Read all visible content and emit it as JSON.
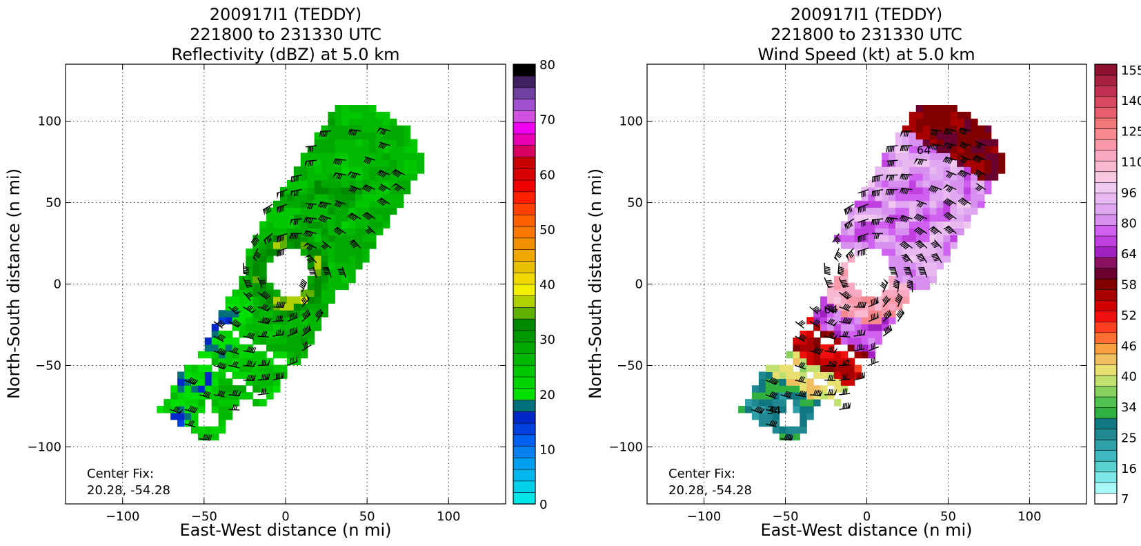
{
  "chart_data": [
    {
      "type": "heatmap",
      "title": [
        "200917I1 (TEDDY)",
        "221800 to 231330 UTC",
        "Reflectivity (dBZ) at 5.0 km"
      ],
      "xlabel": "East-West distance (n mi)",
      "ylabel": "North-South distance (n mi)",
      "xlim": [
        -135,
        135
      ],
      "ylim": [
        -135,
        135
      ],
      "xticks": [
        -100,
        -50,
        0,
        50,
        100
      ],
      "yticks": [
        -100,
        -50,
        0,
        50,
        100
      ],
      "grid": true,
      "annotation": [
        "Center Fix:",
        "20.28, -54.28"
      ],
      "colorbar": {
        "label": "dBZ",
        "range": [
          0,
          80
        ],
        "ticks": [
          0,
          10,
          20,
          30,
          40,
          50,
          60,
          70,
          80
        ],
        "colors": [
          "#00e6e6",
          "#00d0e8",
          "#00b8ee",
          "#00a0f0",
          "#0880f0",
          "#0060f0",
          "#0040e0",
          "#0028c8",
          "#00707a",
          "#00e000",
          "#00d400",
          "#00c800",
          "#00b800",
          "#00a800",
          "#009800",
          "#008800",
          "#60b000",
          "#b0d000",
          "#f0f000",
          "#f0d800",
          "#e8c000",
          "#f0a800",
          "#f09000",
          "#f87800",
          "#ff6000",
          "#ff4000",
          "#ff2000",
          "#f00000",
          "#d80000",
          "#c80000",
          "#d80060",
          "#e800b0",
          "#f000f0",
          "#d050e0",
          "#a050d0",
          "#7040a0",
          "#402060",
          "#000000"
        ]
      },
      "features": {
        "band_axis_deg": 58,
        "eye_center": [
          0,
          5
        ],
        "eye_radius": 14,
        "dominant_range_dBZ": [
          20,
          30
        ],
        "max_near_eyewall_dBZ": 40
      }
    },
    {
      "type": "heatmap",
      "title": [
        "200917I1 (TEDDY)",
        "221800 to 231330 UTC",
        "Wind Speed (kt) at 5.0 km"
      ],
      "xlabel": "East-West distance (n mi)",
      "ylabel": "North-South distance (n mi)",
      "xlim": [
        -135,
        135
      ],
      "ylim": [
        -135,
        135
      ],
      "xticks": [
        -100,
        -50,
        0,
        50,
        100
      ],
      "yticks": [
        -100,
        -50,
        0,
        50,
        100
      ],
      "grid": true,
      "annotation": [
        "Center Fix:",
        "20.28, -54.28"
      ],
      "contour_labels": [
        {
          "text": "64",
          "x": 35,
          "y": 80
        },
        {
          "text": "64",
          "x": -22,
          "y": -18
        },
        {
          "text": "34",
          "x": -57,
          "y": -80
        }
      ],
      "colorbar": {
        "label": "kt",
        "ticks": [
          7,
          16,
          25,
          34,
          40,
          46,
          52,
          58,
          64,
          80,
          96,
          110,
          125,
          140,
          155
        ],
        "colors": [
          "#ffffff",
          "#a8f8f8",
          "#7ee8e8",
          "#5ad0d0",
          "#40b8c0",
          "#30a0a8",
          "#208890",
          "#107880",
          "#30b040",
          "#50c050",
          "#88d060",
          "#c0e070",
          "#e8e070",
          "#f0c060",
          "#f8a040",
          "#ff7030",
          "#ff4020",
          "#f01010",
          "#d00000",
          "#a80000",
          "#800000",
          "#6a0030",
          "#8a1060",
          "#a020c0",
          "#c040e0",
          "#d060f0",
          "#d890f0",
          "#e0a8f0",
          "#e8b8f0",
          "#f0c8f0",
          "#f8c8e0",
          "#f8b8d0",
          "#f8a8c0",
          "#f898a8",
          "#f88890",
          "#f07878",
          "#e86070",
          "#d84860",
          "#c03050",
          "#a82040",
          "#901030"
        ]
      },
      "features": {
        "max_wind_kt": 110,
        "high_wind_regions": [
          "north-east",
          "south-west"
        ]
      }
    }
  ]
}
